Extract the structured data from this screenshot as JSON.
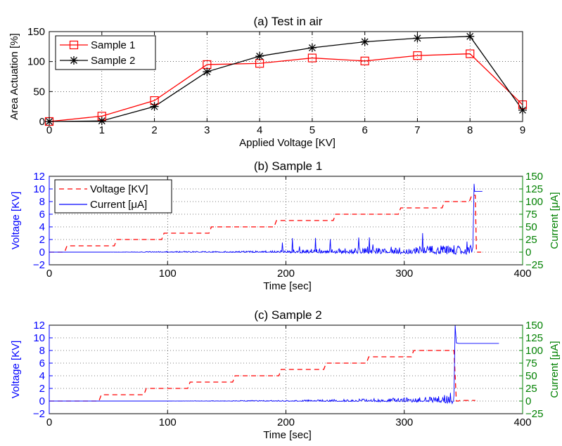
{
  "chart_data": [
    {
      "type": "line",
      "title": "(a) Test in air",
      "xlabel": "Applied Voltage [KV]",
      "ylabel": "Area Actuation [%]",
      "xlim": [
        0,
        9
      ],
      "ylim": [
        0,
        150
      ],
      "xticks": [
        "0",
        "1",
        "2",
        "3",
        "4",
        "5",
        "6",
        "7",
        "8",
        "9"
      ],
      "yticks": [
        "0",
        "50",
        "100",
        "150"
      ],
      "grid": true,
      "legend": "top-left",
      "x": [
        0,
        1,
        2,
        3,
        4,
        5,
        6,
        7,
        8,
        9
      ],
      "series": [
        {
          "name": "Sample 1",
          "color": "#ff0000",
          "marker": "square",
          "values": [
            0,
            9,
            35,
            95,
            97,
            106,
            101,
            110,
            113,
            28
          ]
        },
        {
          "name": "Sample 2",
          "color": "#000000",
          "marker": "asterisk",
          "values": [
            0,
            1,
            25,
            83,
            109,
            123,
            133,
            139,
            142,
            19
          ]
        }
      ]
    },
    {
      "type": "line",
      "title": "(b) Sample 1",
      "xlabel": "Time [sec]",
      "ylabel": "Voltage [KV]",
      "y2label": "Current [μA]",
      "xlim": [
        0,
        400
      ],
      "ylim": [
        -2,
        12
      ],
      "y2lim": [
        -25,
        150
      ],
      "xticks": [
        "0",
        "100",
        "200",
        "300",
        "400"
      ],
      "yticks": [
        "−2",
        "0",
        "2",
        "4",
        "6",
        "8",
        "10",
        "12"
      ],
      "y2ticks": [
        "−25",
        "0",
        "25",
        "50",
        "75",
        "100",
        "125",
        "150"
      ],
      "grid": true,
      "legend": "top-left",
      "series": [
        {
          "name": "Voltage [KV]",
          "axis": "left",
          "color": "#ff0000",
          "style": "dashed",
          "x": [
            0,
            13,
            15,
            55,
            57,
            95,
            97,
            135,
            137,
            190,
            192,
            240,
            242,
            295,
            297,
            332,
            334,
            355,
            357,
            360,
            361,
            365
          ],
          "y": [
            0,
            0,
            1,
            1,
            2,
            2,
            3,
            3,
            4,
            4,
            5,
            5,
            6,
            6,
            7,
            7,
            8,
            8,
            9,
            9,
            0,
            0
          ]
        },
        {
          "name": "Current [μA]",
          "axis": "right",
          "color": "#0000ff",
          "style": "solid",
          "x": [
            0,
            50,
            100,
            150,
            190,
            200,
            250,
            300,
            340,
            358,
            359,
            359.5,
            360,
            366
          ],
          "y": [
            0,
            0,
            1,
            1,
            2,
            3,
            5,
            7,
            9,
            10,
            135,
            120,
            120,
            120
          ]
        }
      ]
    },
    {
      "type": "line",
      "title": "(c) Sample 2",
      "xlabel": "Time [sec]",
      "ylabel": "Voltage [KV]",
      "y2label": "Current [μA]",
      "xlim": [
        0,
        400
      ],
      "ylim": [
        -2,
        12
      ],
      "y2lim": [
        -25,
        150
      ],
      "xticks": [
        "0",
        "100",
        "200",
        "300",
        "400"
      ],
      "yticks": [
        "−2",
        "0",
        "2",
        "4",
        "6",
        "8",
        "10",
        "12"
      ],
      "y2ticks": [
        "−25",
        "0",
        "25",
        "50",
        "75",
        "100",
        "125",
        "150"
      ],
      "grid": true,
      "legend": "top-left",
      "series": [
        {
          "name": "Voltage [KV]",
          "axis": "left",
          "color": "#ff0000",
          "style": "dashed",
          "x": [
            0,
            42,
            44,
            80,
            82,
            117,
            119,
            155,
            157,
            194,
            196,
            232,
            234,
            268,
            270,
            306,
            308,
            342,
            344,
            346,
            347,
            360
          ],
          "y": [
            0,
            0,
            1,
            1,
            2,
            2,
            3,
            3,
            4,
            4,
            5,
            5,
            6,
            6,
            7,
            7,
            8,
            8,
            0,
            0,
            0.1,
            0.1
          ]
        },
        {
          "name": "Current [μA]",
          "axis": "right",
          "color": "#0000ff",
          "style": "solid",
          "x": [
            0,
            100,
            200,
            250,
            300,
            330,
            342,
            343,
            344,
            346,
            380
          ],
          "y": [
            0,
            0,
            1,
            2,
            4,
            6,
            12,
            150,
            115,
            114,
            114
          ]
        }
      ]
    }
  ]
}
